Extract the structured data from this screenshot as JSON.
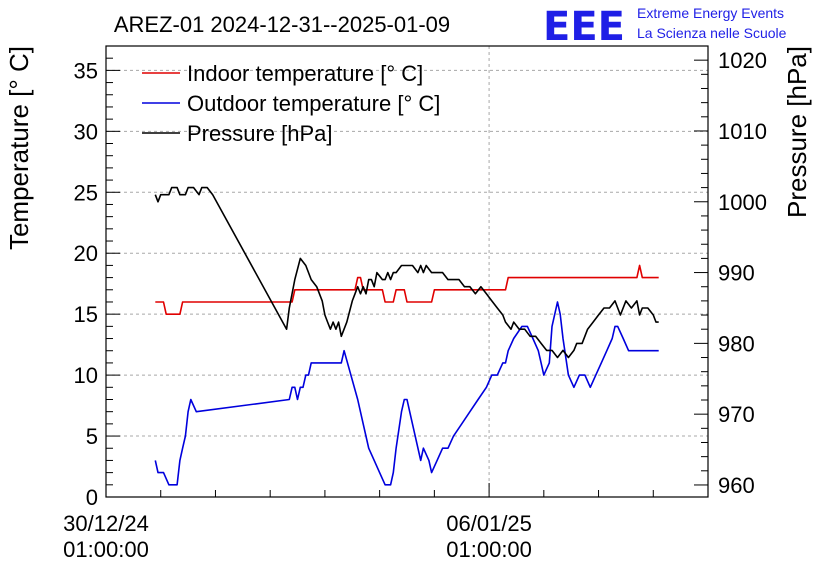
{
  "chart_data": {
    "type": "line",
    "title": "AREZ-01 2024-12-31--2025-01-09",
    "ylabel": "Temperature [° C]",
    "y2label": "Pressure [hPa]",
    "xlabel": "",
    "ylim": [
      0,
      37
    ],
    "y2lim": [
      958.3,
      1022.0
    ],
    "xlim": [
      0,
      11.0
    ],
    "x_unit": "days since 30/12/24 01:00:00",
    "x_ticks": [
      {
        "x": 0,
        "line1": "30/12/24",
        "line2": "01:00:00"
      },
      {
        "x": 7,
        "line1": "06/01/25",
        "line2": "01:00:00"
      }
    ],
    "y_ticks": [
      0,
      5,
      10,
      15,
      20,
      25,
      30,
      35
    ],
    "y2_ticks": [
      960,
      970,
      980,
      990,
      1000,
      1010,
      1020
    ],
    "grid": true,
    "legend_position": "top-left",
    "series": [
      {
        "name": "Indoor temperature [° C]",
        "axis": "left",
        "color": "#e00000",
        "x": [
          0.9,
          1.05,
          1.1,
          1.35,
          1.4,
          3.4,
          3.45,
          4.55,
          4.6,
          4.65,
          4.7,
          5.05,
          5.1,
          5.25,
          5.3,
          5.45,
          5.5,
          5.95,
          6.0,
          7.3,
          7.35,
          9.7,
          9.75,
          9.8,
          10.1
        ],
        "y": [
          16,
          16,
          15,
          15,
          16,
          16,
          17,
          17,
          18,
          18,
          17,
          17,
          16,
          16,
          17,
          17,
          16,
          16,
          17,
          17,
          18,
          18,
          19,
          18,
          18
        ]
      },
      {
        "name": "Outdoor temperature [° C]",
        "axis": "left",
        "color": "#0000dd",
        "x": [
          0.9,
          0.95,
          1.05,
          1.15,
          1.25,
          1.3,
          1.35,
          1.4,
          1.45,
          1.5,
          1.55,
          1.65,
          3.35,
          3.4,
          3.45,
          3.5,
          3.55,
          3.6,
          3.65,
          3.7,
          3.75,
          3.85,
          4.3,
          4.35,
          4.6,
          4.7,
          4.8,
          4.9,
          5.0,
          5.1,
          5.2,
          5.25,
          5.3,
          5.4,
          5.45,
          5.5,
          5.55,
          5.65,
          5.75,
          5.8,
          5.9,
          5.95,
          6.05,
          6.15,
          6.25,
          6.35,
          6.5,
          6.65,
          6.8,
          6.95,
          7.05,
          7.15,
          7.25,
          7.3,
          7.35,
          7.45,
          7.6,
          7.7,
          7.8,
          7.9,
          7.95,
          8.0,
          8.1,
          8.15,
          8.25,
          8.3,
          8.35,
          8.45,
          8.55,
          8.65,
          8.75,
          8.85,
          8.95,
          9.05,
          9.15,
          9.25,
          9.3,
          9.35,
          9.45,
          9.55,
          9.6,
          9.7,
          9.75,
          9.85,
          9.9,
          10.0,
          10.1
        ],
        "y": [
          3,
          2,
          2,
          1,
          1,
          1,
          3,
          4,
          5,
          7,
          8,
          7,
          8,
          9,
          9,
          8,
          9,
          9,
          10,
          10,
          11,
          11,
          11,
          12,
          8,
          6,
          4,
          3,
          2,
          1,
          1,
          2,
          4,
          7,
          8,
          8,
          7,
          5,
          3,
          4,
          3,
          2,
          3,
          4,
          4,
          5,
          6,
          7,
          8,
          9,
          10,
          10,
          11,
          11,
          12,
          13,
          14,
          14,
          13,
          12,
          11,
          10,
          11,
          14,
          16,
          15,
          13,
          10,
          9,
          10,
          10,
          9,
          10,
          11,
          12,
          13,
          14,
          14,
          13,
          12,
          12,
          12,
          12,
          12,
          12,
          12,
          12
        ]
      },
      {
        "name": "Pressure [hPa]",
        "axis": "right",
        "color": "#000000",
        "x": [
          0.9,
          0.95,
          1.0,
          1.05,
          1.15,
          1.2,
          1.3,
          1.35,
          1.45,
          1.5,
          1.6,
          1.7,
          1.75,
          1.85,
          1.95,
          3.3,
          3.35,
          3.45,
          3.55,
          3.65,
          3.75,
          3.85,
          3.95,
          4.0,
          4.05,
          4.1,
          4.15,
          4.2,
          4.25,
          4.3,
          4.4,
          4.5,
          4.55,
          4.6,
          4.65,
          4.7,
          4.75,
          4.8,
          4.85,
          4.9,
          4.95,
          5.05,
          5.1,
          5.15,
          5.2,
          5.25,
          5.3,
          5.4,
          5.5,
          5.6,
          5.7,
          5.75,
          5.8,
          5.85,
          5.95,
          6.05,
          6.15,
          6.25,
          6.35,
          6.45,
          6.55,
          6.65,
          6.75,
          6.85,
          6.95,
          7.05,
          7.15,
          7.25,
          7.3,
          7.4,
          7.45,
          7.55,
          7.65,
          7.75,
          7.85,
          7.95,
          8.05,
          8.15,
          8.25,
          8.35,
          8.45,
          8.55,
          8.6,
          8.7,
          8.8,
          8.9,
          9.0,
          9.1,
          9.2,
          9.3,
          9.4,
          9.5,
          9.6,
          9.7,
          9.75,
          9.8,
          9.9,
          10.0,
          10.05,
          10.1
        ],
        "y": [
          1001,
          1000,
          1001,
          1001,
          1001,
          1002,
          1002,
          1001,
          1001,
          1002,
          1002,
          1001,
          1002,
          1002,
          1001,
          982,
          985,
          989,
          992,
          991,
          989,
          988,
          986,
          984,
          983,
          982,
          983,
          982,
          983,
          981,
          983,
          986,
          987,
          988,
          987,
          988,
          987,
          989,
          989,
          988,
          990,
          989,
          989,
          990,
          989,
          990,
          990,
          991,
          991,
          991,
          990,
          991,
          990,
          991,
          990,
          990,
          990,
          989,
          989,
          989,
          988,
          988,
          987,
          988,
          987,
          986,
          985,
          984,
          983,
          982,
          983,
          982,
          982,
          981,
          981,
          980,
          979,
          979,
          978,
          979,
          978,
          979,
          980,
          980,
          982,
          983,
          984,
          985,
          985,
          986,
          984,
          986,
          985,
          986,
          984,
          985,
          985,
          984,
          983,
          983
        ]
      }
    ]
  },
  "logo": {
    "mark": "EEE",
    "line1": "Extreme Energy Events",
    "line2": "La Scienza nelle Scuole"
  },
  "colors": {
    "indoor": "#e00000",
    "outdoor": "#0000dd",
    "pressure": "#000000",
    "grid": "#a8a8a8",
    "logo": "#1f1fe6"
  }
}
